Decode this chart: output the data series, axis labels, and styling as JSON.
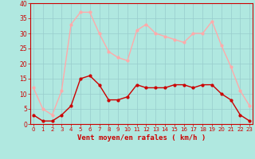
{
  "hours": [
    0,
    1,
    2,
    3,
    4,
    5,
    6,
    7,
    8,
    9,
    10,
    11,
    12,
    13,
    14,
    15,
    16,
    17,
    18,
    19,
    20,
    21,
    22,
    23
  ],
  "avg_wind": [
    3,
    1,
    1,
    3,
    6,
    15,
    16,
    13,
    8,
    8,
    9,
    13,
    12,
    12,
    12,
    13,
    13,
    12,
    13,
    13,
    10,
    8,
    3,
    1
  ],
  "gust_wind": [
    12,
    5,
    3,
    11,
    33,
    37,
    37,
    30,
    24,
    22,
    21,
    31,
    33,
    30,
    29,
    28,
    27,
    30,
    30,
    34,
    26,
    19,
    11,
    6
  ],
  "avg_color": "#cc0000",
  "gust_color": "#ffaaaa",
  "bg_color": "#b0e8e0",
  "grid_color": "#99cccc",
  "xlabel": "Vent moyen/en rafales ( km/h )",
  "xlabel_color": "#cc0000",
  "tick_color": "#cc0000",
  "ylim": [
    0,
    40
  ],
  "yticks": [
    0,
    5,
    10,
    15,
    20,
    25,
    30,
    35,
    40
  ],
  "spine_color": "#cc0000"
}
